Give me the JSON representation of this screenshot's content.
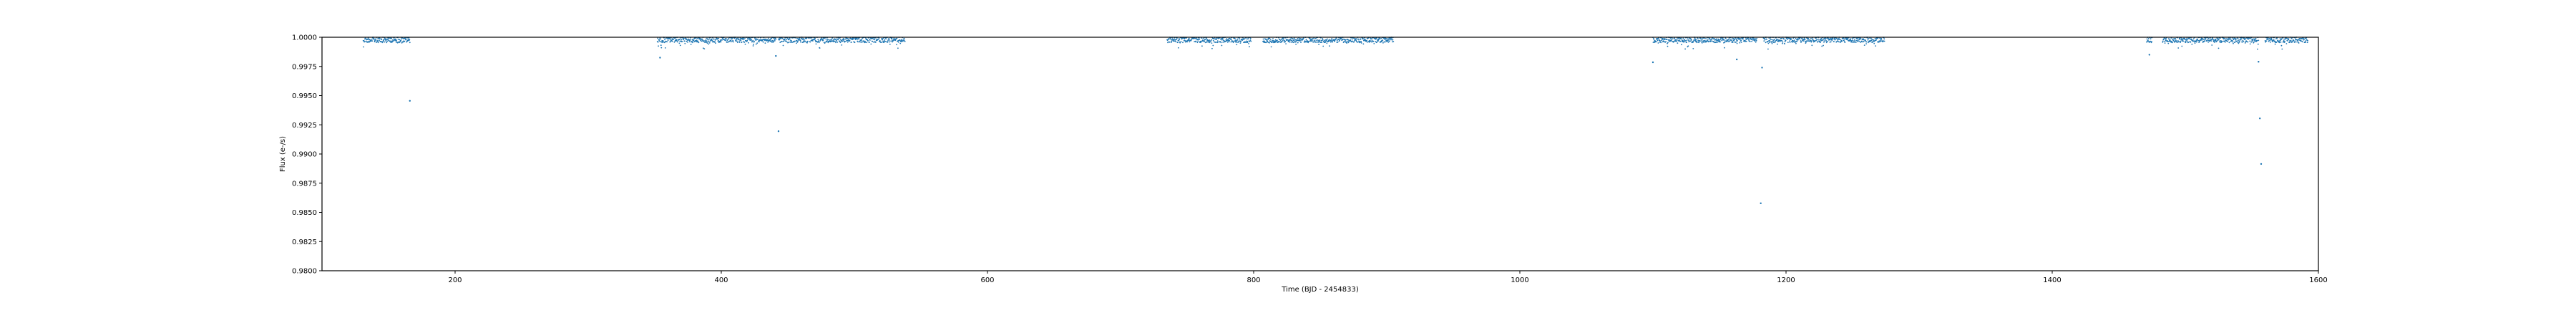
{
  "chart_data": {
    "type": "scatter",
    "xlabel": "Time (BJD - 2454833)",
    "ylabel": "Flux (e-/s)",
    "xlim": [
      100,
      1600
    ],
    "ylim": [
      0.98,
      1.0
    ],
    "x_ticks": [
      200,
      400,
      600,
      800,
      1000,
      1200,
      1400,
      1600
    ],
    "x_tick_labels": [
      "200",
      "400",
      "600",
      "800",
      "1000",
      "1200",
      "1400",
      "1600"
    ],
    "y_ticks": [
      0.98,
      0.9825,
      0.985,
      0.9875,
      0.99,
      0.9925,
      0.995,
      0.9975,
      1.0
    ],
    "y_tick_labels": [
      "0.9800",
      "0.9825",
      "0.9850",
      "0.9875",
      "0.9900",
      "0.9925",
      "0.9950",
      "0.9975",
      "1.0000"
    ],
    "grid": false,
    "legend": false,
    "colors": {
      "points": "#1f77b4",
      "axes": "#000000"
    },
    "segments": [
      [
        131,
        166
      ],
      [
        352,
        441
      ],
      [
        443,
        538
      ],
      [
        735,
        798
      ],
      [
        807,
        905
      ],
      [
        1100,
        1178
      ],
      [
        1183,
        1274
      ],
      [
        1471,
        1475
      ],
      [
        1483,
        1555
      ],
      [
        1560,
        1592
      ]
    ],
    "dips": [
      {
        "x": 166,
        "y": 0.99455
      },
      {
        "x": 354,
        "y": 0.99825
      },
      {
        "x": 441,
        "y": 0.9984
      },
      {
        "x": 443,
        "y": 0.99195
      },
      {
        "x": 1100,
        "y": 0.99785
      },
      {
        "x": 1163,
        "y": 0.9981
      },
      {
        "x": 1181,
        "y": 0.98578
      },
      {
        "x": 1182,
        "y": 0.9974
      },
      {
        "x": 1473,
        "y": 0.9985
      },
      {
        "x": 1556,
        "y": 0.99305
      },
      {
        "x": 1555,
        "y": 0.9979
      },
      {
        "x": 1557,
        "y": 0.98915
      }
    ]
  }
}
